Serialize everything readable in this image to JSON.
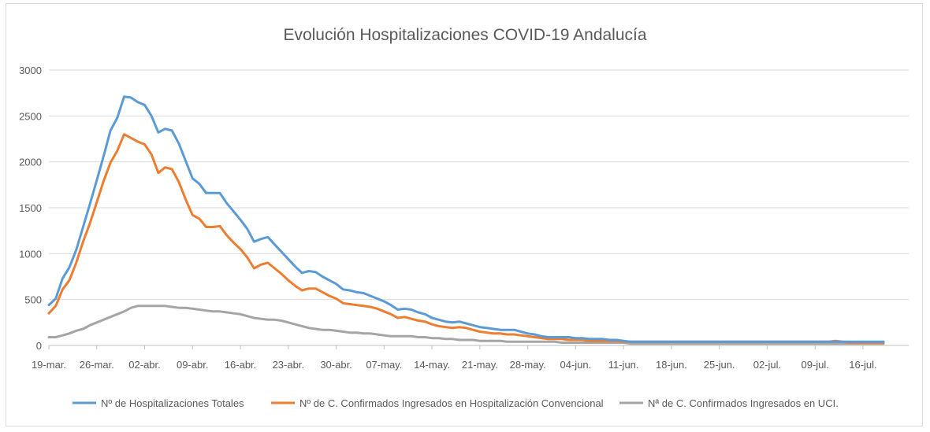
{
  "chart_data": {
    "type": "line",
    "title": "Evolución Hospitalizaciones COVID-19 Andalucía",
    "xlabel": "",
    "ylabel": "",
    "ylim": [
      0,
      3000
    ],
    "yticks": [
      0,
      500,
      1000,
      1500,
      2000,
      2500,
      3000
    ],
    "grid": "horizontal",
    "legend": "bottom",
    "start_date": "2020-03-19",
    "x_tick_labels": [
      "19-mar.",
      "26-mar.",
      "02-abr.",
      "09-abr.",
      "16-abr.",
      "23-abr.",
      "30-abr.",
      "07-may.",
      "14-may.",
      "21-may.",
      "28-may.",
      "04-jun.",
      "11-jun.",
      "18-jun.",
      "25-jun.",
      "02-jul.",
      "09-jul.",
      "16-jul."
    ],
    "series": [
      {
        "name": "Nº de Hospitalizaciones Totales",
        "color": "#5b9bd5",
        "values": [
          440,
          510,
          730,
          850,
          1040,
          1290,
          1540,
          1800,
          2060,
          2340,
          2480,
          2710,
          2700,
          2650,
          2620,
          2500,
          2320,
          2360,
          2340,
          2200,
          2010,
          1820,
          1760,
          1660,
          1660,
          1660,
          1550,
          1460,
          1370,
          1270,
          1130,
          1160,
          1180,
          1100,
          1020,
          940,
          860,
          790,
          810,
          800,
          750,
          710,
          670,
          610,
          600,
          580,
          570,
          540,
          510,
          480,
          440,
          390,
          400,
          390,
          360,
          340,
          300,
          280,
          260,
          250,
          260,
          240,
          220,
          200,
          190,
          180,
          170,
          170,
          170,
          150,
          130,
          120,
          100,
          90,
          90,
          90,
          90,
          80,
          80,
          70,
          70,
          70,
          60,
          60,
          50,
          40,
          40,
          40,
          40,
          40,
          40,
          40,
          40,
          40,
          40,
          40,
          40,
          40,
          40,
          40,
          40,
          40,
          40,
          40,
          40,
          40,
          40,
          40,
          40,
          40,
          40,
          40,
          40,
          40,
          40,
          40,
          40,
          40,
          40,
          40,
          40,
          40,
          40
        ]
      },
      {
        "name": "Nº de C. Confirmados Ingresados en Hospitalización Convencional",
        "color": "#ed7d31",
        "values": [
          350,
          430,
          610,
          710,
          900,
          1130,
          1330,
          1560,
          1790,
          1990,
          2120,
          2300,
          2260,
          2220,
          2190,
          2080,
          1880,
          1940,
          1920,
          1780,
          1590,
          1420,
          1380,
          1290,
          1290,
          1300,
          1200,
          1120,
          1050,
          960,
          840,
          880,
          900,
          840,
          780,
          710,
          650,
          600,
          620,
          620,
          580,
          540,
          510,
          460,
          450,
          440,
          430,
          420,
          400,
          370,
          340,
          300,
          310,
          290,
          270,
          260,
          230,
          210,
          200,
          190,
          200,
          190,
          170,
          150,
          140,
          130,
          130,
          120,
          120,
          110,
          100,
          90,
          80,
          70,
          70,
          70,
          60,
          60,
          60,
          50,
          50,
          50,
          50,
          50,
          40,
          40,
          40,
          40,
          40,
          40,
          40,
          40,
          40,
          40,
          40,
          40,
          40,
          40,
          40,
          40,
          40,
          40,
          40,
          40,
          40,
          40,
          40,
          40,
          40,
          40,
          40,
          40,
          40,
          40,
          40,
          50,
          40,
          30,
          30,
          30,
          30,
          30,
          30
        ]
      },
      {
        "name": "Nª de C. Confirmados Ingresados en UCI.",
        "color": "#a5a5a5",
        "values": [
          90,
          90,
          110,
          130,
          160,
          180,
          220,
          250,
          280,
          310,
          340,
          370,
          410,
          430,
          430,
          430,
          430,
          430,
          420,
          410,
          410,
          400,
          390,
          380,
          370,
          370,
          360,
          350,
          340,
          320,
          300,
          290,
          280,
          280,
          270,
          250,
          230,
          210,
          190,
          180,
          170,
          170,
          160,
          150,
          140,
          140,
          130,
          130,
          120,
          110,
          100,
          100,
          100,
          100,
          90,
          90,
          80,
          80,
          70,
          70,
          60,
          60,
          60,
          50,
          50,
          50,
          50,
          40,
          40,
          40,
          40,
          40,
          40,
          40,
          40,
          30,
          30,
          30,
          30,
          30,
          30,
          30,
          30,
          30,
          30,
          20,
          20,
          20,
          20,
          20,
          20,
          20,
          20,
          20,
          20,
          20,
          20,
          20,
          20,
          20,
          20,
          20,
          20,
          20,
          20,
          20,
          20,
          20,
          20,
          20,
          20,
          20,
          20,
          20,
          20,
          20,
          20,
          20,
          20,
          20,
          20,
          20,
          20
        ]
      }
    ]
  }
}
